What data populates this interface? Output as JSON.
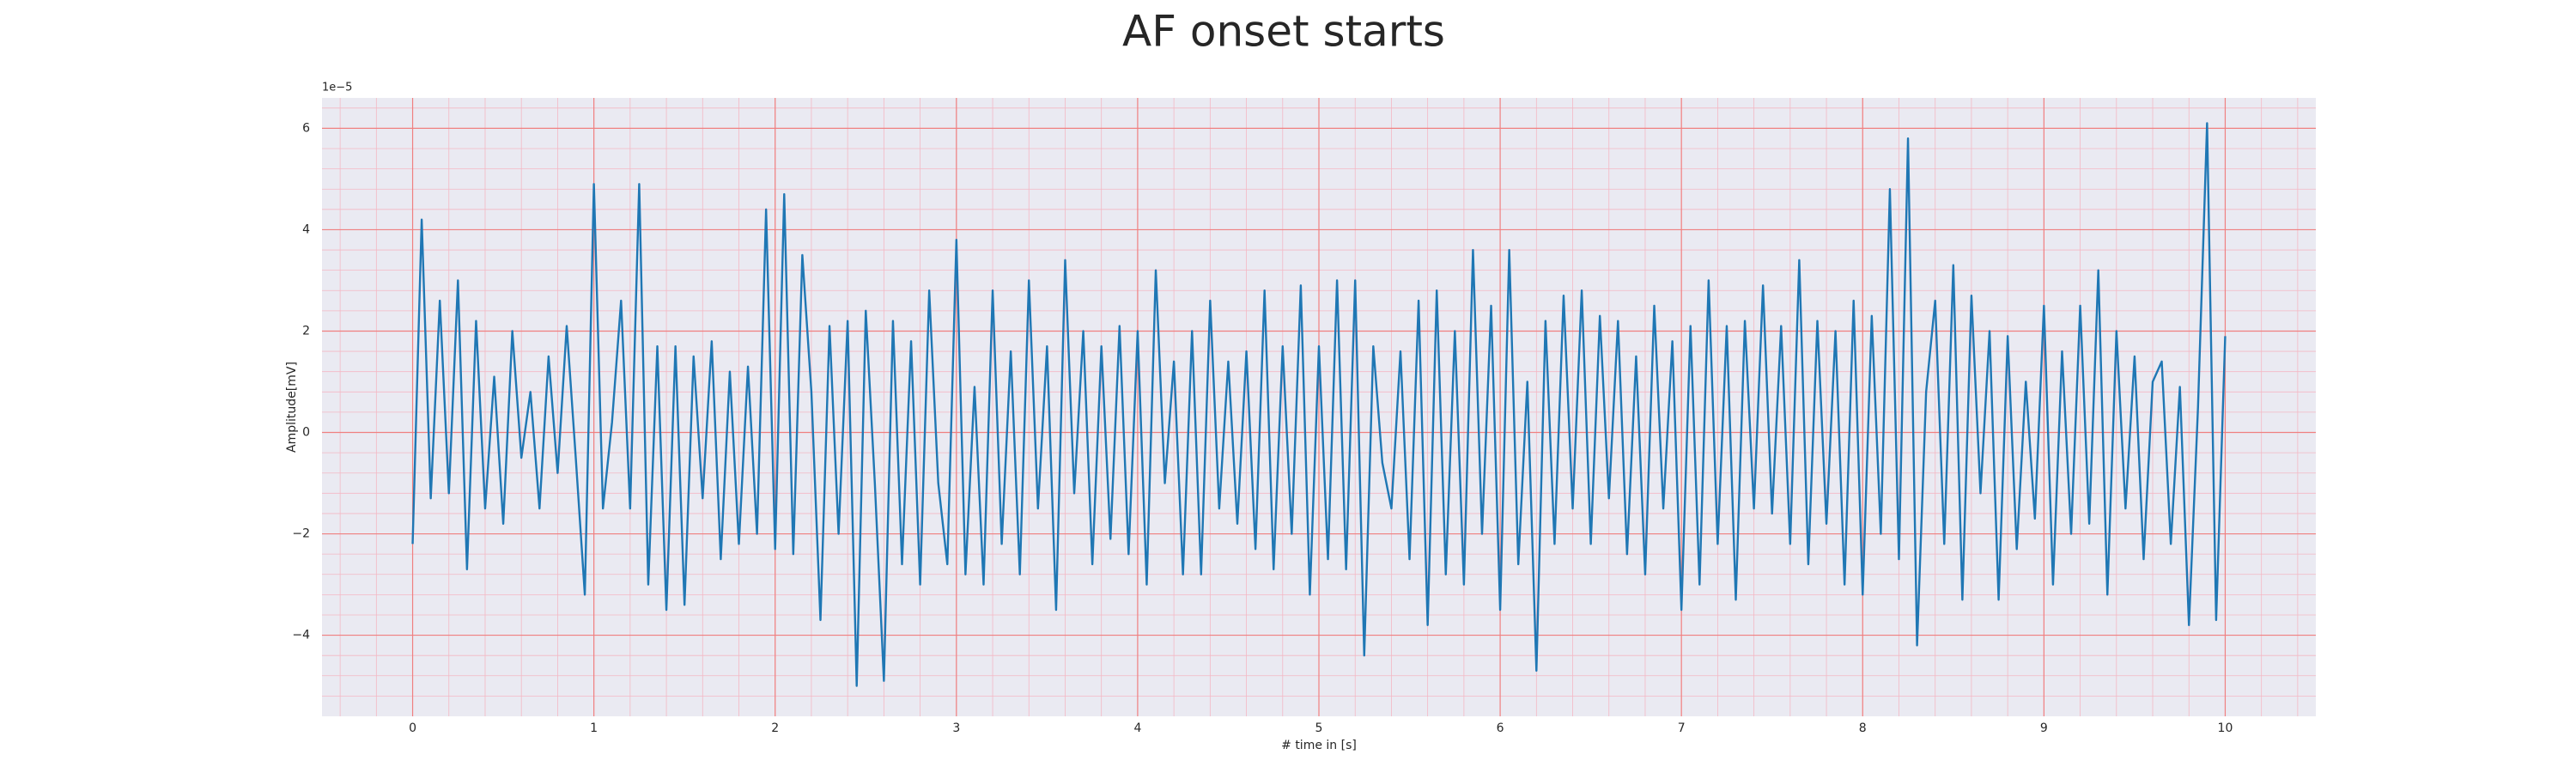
{
  "chart_data": {
    "type": "line",
    "title": "AF onset starts",
    "xlabel": "# time in [s]",
    "ylabel": "Amplitude[mV]",
    "y_offset_label": "1e−5",
    "grid": true,
    "xlim": [
      -0.5,
      10.5
    ],
    "ylim": [
      -5.6,
      6.6
    ],
    "xticks": [
      0,
      1,
      2,
      3,
      4,
      5,
      6,
      7,
      8,
      9,
      10
    ],
    "yticks": [
      {
        "value": -4,
        "label": "−4"
      },
      {
        "value": -2,
        "label": "−2"
      },
      0,
      2,
      4,
      6
    ],
    "x": [
      0,
      0.05,
      0.1,
      0.15,
      0.2,
      0.25,
      0.3,
      0.35,
      0.4,
      0.45,
      0.5,
      0.55,
      0.6,
      0.65,
      0.7,
      0.75,
      0.8,
      0.85,
      0.9,
      0.95,
      1,
      1.05,
      1.1,
      1.15,
      1.2,
      1.25,
      1.3,
      1.35,
      1.4,
      1.45,
      1.5,
      1.55,
      1.6,
      1.65,
      1.7,
      1.75,
      1.8,
      1.85,
      1.9,
      1.95,
      2,
      2.05,
      2.1,
      2.15,
      2.2,
      2.25,
      2.3,
      2.35,
      2.4,
      2.45,
      2.5,
      2.55,
      2.6,
      2.65,
      2.7,
      2.75,
      2.8,
      2.85,
      2.9,
      2.95,
      3,
      3.05,
      3.1,
      3.15,
      3.2,
      3.25,
      3.3,
      3.35,
      3.4,
      3.45,
      3.5,
      3.55,
      3.6,
      3.65,
      3.7,
      3.75,
      3.8,
      3.85,
      3.9,
      3.95,
      4,
      4.05,
      4.1,
      4.15,
      4.2,
      4.25,
      4.3,
      4.35,
      4.4,
      4.45,
      4.5,
      4.55,
      4.6,
      4.65,
      4.7,
      4.75,
      4.8,
      4.85,
      4.9,
      4.95,
      5,
      5.05,
      5.1,
      5.15,
      5.2,
      5.25,
      5.3,
      5.35,
      5.4,
      5.45,
      5.5,
      5.55,
      5.6,
      5.65,
      5.7,
      5.75,
      5.8,
      5.85,
      5.9,
      5.95,
      6,
      6.05,
      6.1,
      6.15,
      6.2,
      6.25,
      6.3,
      6.35,
      6.4,
      6.45,
      6.5,
      6.55,
      6.6,
      6.65,
      6.7,
      6.75,
      6.8,
      6.85,
      6.9,
      6.95,
      7,
      7.05,
      7.1,
      7.15,
      7.2,
      7.25,
      7.3,
      7.35,
      7.4,
      7.45,
      7.5,
      7.55,
      7.6,
      7.65,
      7.7,
      7.75,
      7.8,
      7.85,
      7.9,
      7.95,
      8,
      8.05,
      8.1,
      8.15,
      8.2,
      8.25,
      8.3,
      8.35,
      8.4,
      8.45,
      8.5,
      8.55,
      8.6,
      8.65,
      8.7,
      8.75,
      8.8,
      8.85,
      8.9,
      8.95,
      9,
      9.05,
      9.1,
      9.15,
      9.2,
      9.25,
      9.3,
      9.35,
      9.4,
      9.45,
      9.5,
      9.55,
      9.6,
      9.65,
      9.7,
      9.75,
      9.8,
      9.85,
      9.9,
      9.95,
      10
    ],
    "series": [
      {
        "color": "#1f77b4",
        "values": [
          -2.2,
          4.2,
          -1.3,
          2.6,
          -1.2,
          3.0,
          -2.7,
          2.2,
          -1.5,
          1.1,
          -1.8,
          2.0,
          -0.5,
          0.8,
          -1.5,
          1.5,
          -0.8,
          2.1,
          -0.5,
          -3.2,
          4.9,
          -1.5,
          0.2,
          2.6,
          -1.5,
          4.9,
          -3.0,
          1.7,
          -3.5,
          1.7,
          -3.4,
          1.5,
          -1.3,
          1.8,
          -2.5,
          1.2,
          -2.2,
          1.3,
          -2.0,
          4.4,
          -2.3,
          4.7,
          -2.4,
          3.5,
          0.8,
          -3.7,
          2.1,
          -2.0,
          2.2,
          -5.0,
          2.4,
          -1.0,
          -4.9,
          2.2,
          -2.6,
          1.8,
          -3.0,
          2.8,
          -1.0,
          -2.6,
          3.8,
          -2.8,
          0.9,
          -3.0,
          2.8,
          -2.2,
          1.6,
          -2.8,
          3.0,
          -1.5,
          1.7,
          -3.5,
          3.4,
          -1.2,
          2.0,
          -2.6,
          1.7,
          -2.1,
          2.1,
          -2.4,
          2.0,
          -3.0,
          3.2,
          -1.0,
          1.4,
          -2.8,
          2.0,
          -2.8,
          2.6,
          -1.5,
          1.4,
          -1.8,
          1.6,
          -2.3,
          2.8,
          -2.7,
          1.7,
          -2.0,
          2.9,
          -3.2,
          1.7,
          -2.5,
          3.0,
          -2.7,
          3.0,
          -4.4,
          1.7,
          -0.6,
          -1.5,
          1.6,
          -2.5,
          2.6,
          -3.8,
          2.8,
          -2.8,
          2.0,
          -3.0,
          3.6,
          -2.0,
          2.5,
          -3.5,
          3.6,
          -2.6,
          1.0,
          -4.7,
          2.2,
          -2.2,
          2.7,
          -1.5,
          2.8,
          -2.2,
          2.3,
          -1.3,
          2.2,
          -2.4,
          1.5,
          -2.8,
          2.5,
          -1.5,
          1.8,
          -3.5,
          2.1,
          -3.0,
          3.0,
          -2.2,
          2.1,
          -3.3,
          2.2,
          -1.5,
          2.9,
          -1.6,
          2.1,
          -2.2,
          3.4,
          -2.6,
          2.2,
          -1.8,
          2.0,
          -3.0,
          2.6,
          -3.2,
          2.3,
          -2.0,
          4.8,
          -2.5,
          5.8,
          -4.2,
          0.8,
          2.6,
          -2.2,
          3.3,
          -3.3,
          2.7,
          -1.2,
          2.0,
          -3.3,
          1.9,
          -2.3,
          1.0,
          -1.7,
          2.5,
          -3.0,
          1.6,
          -2.0,
          2.5,
          -1.8,
          3.2,
          -3.2,
          2.0,
          -1.5,
          1.5,
          -2.5,
          1.0,
          1.4,
          -2.2,
          0.9,
          -3.8,
          0.5,
          6.1,
          -3.7,
          1.9
        ]
      }
    ]
  }
}
